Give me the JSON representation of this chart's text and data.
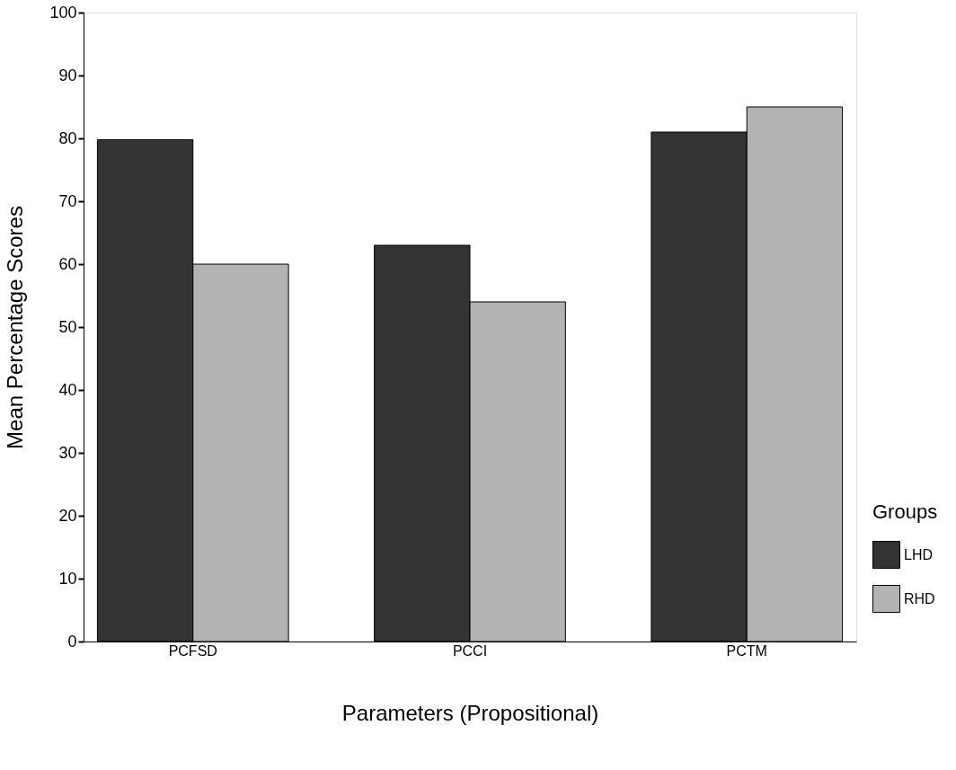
{
  "chart_data": {
    "type": "bar",
    "xlabel": "Parameters (Propositional)",
    "ylabel": "Mean Percentage Scores",
    "legend_title": "Groups",
    "categories": [
      "PCFSD",
      "PCCI",
      "PCTM"
    ],
    "series": [
      {
        "name": "LHD",
        "color": "#333333",
        "values": [
          79.8,
          63,
          81
        ]
      },
      {
        "name": "RHD",
        "color": "#b3b3b3",
        "values": [
          60,
          54,
          85
        ]
      }
    ],
    "ylim": [
      0,
      100
    ],
    "yticks": [
      0,
      10,
      20,
      30,
      40,
      50,
      60,
      70,
      80,
      90,
      100
    ],
    "grid": false,
    "legend": "right"
  }
}
